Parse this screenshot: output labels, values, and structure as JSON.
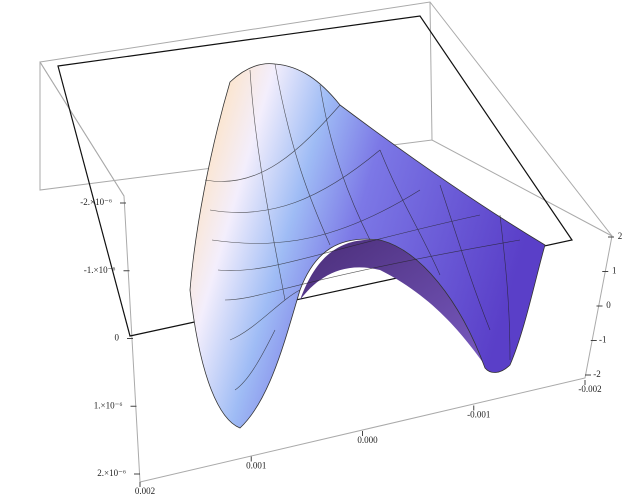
{
  "chart_data": {
    "type": "surface3d",
    "zlim": [
      -2e-06,
      2e-06
    ],
    "zticks": [
      {
        "value": -2e-06,
        "label": "-2.×10⁻⁶"
      },
      {
        "value": -1e-06,
        "label": "-1.×10⁻⁶"
      },
      0,
      {
        "value": 1e-06,
        "label": "1.×10⁻⁶"
      },
      {
        "value": 2e-06,
        "label": "2.×10⁻⁶"
      }
    ],
    "xlim": [
      0.002,
      -0.002
    ],
    "xticks": [
      0.002,
      0.001,
      {
        "value": 0,
        "label": "0.000"
      },
      -0.001,
      -0.002
    ],
    "ylim": [
      -2,
      2
    ],
    "yticks": [
      -2,
      -1,
      0,
      1,
      2
    ]
  }
}
